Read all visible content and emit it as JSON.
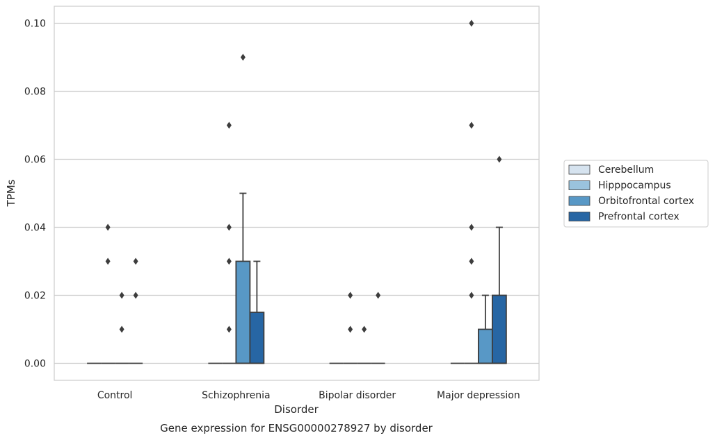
{
  "chart_data": {
    "type": "box",
    "caption": "Gene expression for ENSG00000278927 by disorder",
    "xlabel": "Disorder",
    "ylabel": "TPMs",
    "ylim": [
      -0.005,
      0.105
    ],
    "yticks": [
      "0.00",
      "0.02",
      "0.04",
      "0.06",
      "0.08",
      "0.10"
    ],
    "ytick_values": [
      0,
      0.02,
      0.04,
      0.06,
      0.08,
      0.1
    ],
    "grid": true,
    "legend_position": "right",
    "categories": [
      "Control",
      "Schizophrenia",
      "Bipolar disorder",
      "Major depression"
    ],
    "series": [
      {
        "name": "Cerebellum",
        "color": "#d6e3ef",
        "boxes": [
          {
            "q1": 0,
            "median": 0,
            "q3": 0,
            "whisker_low": 0,
            "whisker_high": 0,
            "outliers": []
          },
          {
            "q1": 0,
            "median": 0,
            "q3": 0,
            "whisker_low": 0,
            "whisker_high": 0,
            "outliers": []
          },
          {
            "q1": 0,
            "median": 0,
            "q3": 0,
            "whisker_low": 0,
            "whisker_high": 0,
            "outliers": []
          },
          {
            "q1": 0,
            "median": 0,
            "q3": 0,
            "whisker_low": 0,
            "whisker_high": 0,
            "outliers": []
          }
        ]
      },
      {
        "name": "Hipppocampus",
        "color": "#9ac3dd",
        "boxes": [
          {
            "q1": 0,
            "median": 0,
            "q3": 0,
            "whisker_low": 0,
            "whisker_high": 0,
            "outliers": [
              0.03,
              0.04
            ]
          },
          {
            "q1": 0,
            "median": 0,
            "q3": 0,
            "whisker_low": 0,
            "whisker_high": 0,
            "outliers": [
              0.01,
              0.03,
              0.04,
              0.07
            ]
          },
          {
            "q1": 0,
            "median": 0,
            "q3": 0,
            "whisker_low": 0,
            "whisker_high": 0,
            "outliers": [
              0.01,
              0.02
            ]
          },
          {
            "q1": 0,
            "median": 0,
            "q3": 0,
            "whisker_low": 0,
            "whisker_high": 0,
            "outliers": [
              0.04,
              0.02,
              0.03,
              0.07,
              0.1
            ]
          }
        ]
      },
      {
        "name": "Orbitofrontal cortex",
        "color": "#5898c6",
        "boxes": [
          {
            "q1": 0,
            "median": 0,
            "q3": 0,
            "whisker_low": 0,
            "whisker_high": 0,
            "outliers": [
              0.01,
              0.02
            ]
          },
          {
            "q1": 0,
            "median": 0,
            "q3": 0.03,
            "whisker_low": 0,
            "whisker_high": 0.05,
            "outliers": [
              0.09
            ]
          },
          {
            "q1": 0,
            "median": 0,
            "q3": 0,
            "whisker_low": 0,
            "whisker_high": 0,
            "outliers": [
              0.01
            ]
          },
          {
            "q1": 0,
            "median": 0,
            "q3": 0.01,
            "whisker_low": 0,
            "whisker_high": 0.02,
            "outliers": []
          }
        ]
      },
      {
        "name": "Prefrontal cortex",
        "color": "#2766a4",
        "boxes": [
          {
            "q1": 0,
            "median": 0,
            "q3": 0,
            "whisker_low": 0,
            "whisker_high": 0,
            "outliers": [
              0.02,
              0.03
            ]
          },
          {
            "q1": 0,
            "median": 0,
            "q3": 0.015,
            "whisker_low": 0,
            "whisker_high": 0.03,
            "outliers": []
          },
          {
            "q1": 0,
            "median": 0,
            "q3": 0,
            "whisker_low": 0,
            "whisker_high": 0,
            "outliers": [
              0.02
            ]
          },
          {
            "q1": 0,
            "median": 0,
            "q3": 0.02,
            "whisker_low": 0,
            "whisker_high": 0.04,
            "outliers": [
              0.06
            ]
          }
        ]
      }
    ],
    "style": {
      "grid_color": "#cccccc",
      "frame_color": "#cccccc",
      "box_edge_color": "#3d3d3d",
      "marker_color": "#3d3d3d"
    }
  }
}
